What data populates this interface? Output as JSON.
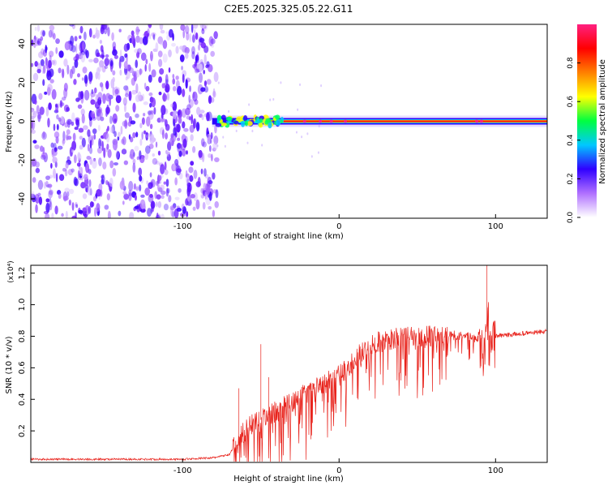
{
  "title": "C2E5.2025.325.05.22.G11",
  "chart_data": [
    {
      "type": "heatmap",
      "xlabel": "Height of straight line (km)",
      "ylabel": "Frequency (Hz)",
      "xlim": [
        -197,
        133
      ],
      "ylim": [
        -50,
        50
      ],
      "xticks": [
        -100,
        0,
        100
      ],
      "xtick_labels": [
        "-100",
        "0",
        "100"
      ],
      "yticks": [
        -40,
        -20,
        0,
        20,
        40
      ],
      "ytick_labels": [
        "-40",
        "-20",
        "0",
        "20",
        "40"
      ],
      "noise_region_x": [
        -197,
        -78
      ],
      "signal_line_frequency": 0,
      "colorbar": {
        "label": "Normalized spectral amplitude",
        "range": [
          0.0,
          1.0
        ],
        "ticks": [
          0.0,
          0.2,
          0.4,
          0.6,
          0.8
        ],
        "tick_labels": [
          "0.0",
          "0.2",
          "0.4",
          "0.6",
          "0.8"
        ],
        "colors": [
          "#ffffff",
          "#b070ff",
          "#3000ff",
          "#00c8ff",
          "#00ff40",
          "#ffff00",
          "#ff8000",
          "#ff0000",
          "#ff2080"
        ]
      }
    },
    {
      "type": "line",
      "xlabel": "Height of straight line (km)",
      "ylabel": "SNR (10 * v/v)",
      "multiplier_label": "(x10⁴)",
      "xlim": [
        -197,
        133
      ],
      "ylim": [
        0,
        1.25
      ],
      "xticks": [
        -100,
        0,
        100
      ],
      "xtick_labels": [
        "-100",
        "0",
        "100"
      ],
      "yticks": [
        0.2,
        0.4,
        0.6,
        0.8,
        1.0,
        1.2
      ],
      "ytick_labels": [
        "0.2",
        "0.4",
        "0.6",
        "0.8",
        "1.0",
        "1.2"
      ],
      "series": [
        {
          "name": "SNR",
          "color": "#e8231c",
          "x": [
            -197,
            -150,
            -100,
            -80,
            -70,
            -66,
            -62,
            -58,
            -54,
            -50,
            -45,
            -40,
            -35,
            -30,
            -25,
            -20,
            -15,
            -10,
            -5,
            0,
            5,
            10,
            15,
            20,
            25,
            30,
            40,
            50,
            60,
            70,
            80,
            85,
            88,
            90,
            93,
            95,
            97,
            100,
            110,
            120,
            133
          ],
          "y": [
            0.02,
            0.02,
            0.02,
            0.03,
            0.05,
            0.12,
            0.18,
            0.22,
            0.25,
            0.27,
            0.3,
            0.32,
            0.35,
            0.38,
            0.41,
            0.44,
            0.47,
            0.5,
            0.52,
            0.55,
            0.6,
            0.65,
            0.7,
            0.74,
            0.76,
            0.78,
            0.79,
            0.8,
            0.8,
            0.81,
            0.8,
            0.79,
            0.78,
            0.82,
            0.7,
            0.95,
            0.8,
            0.8,
            0.81,
            0.82,
            0.83
          ]
        }
      ]
    }
  ]
}
